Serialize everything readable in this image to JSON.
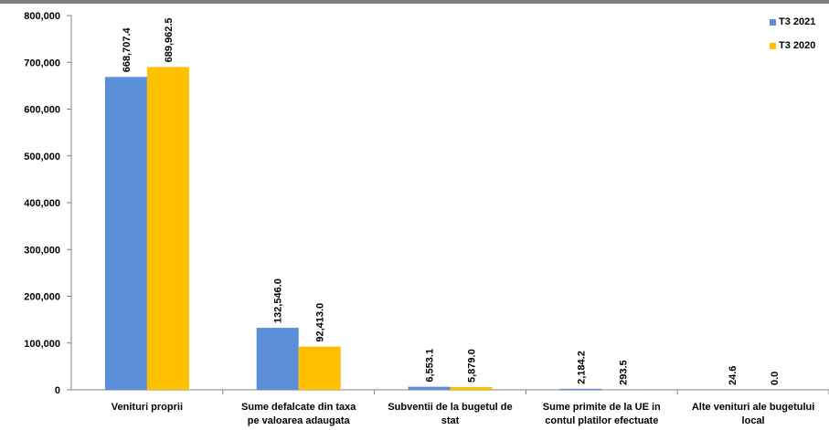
{
  "chart_data": {
    "type": "bar",
    "categories": [
      [
        "Venituri proprii"
      ],
      [
        "Sume defalcate din taxa",
        "pe valoarea adaugata"
      ],
      [
        "Subventii de la bugetul de",
        "stat"
      ],
      [
        "Sume primite de la UE in",
        "contul platilor efectuate"
      ],
      [
        "Alte venituri ale bugetului",
        "local"
      ]
    ],
    "series": [
      {
        "name": "T3 2021",
        "color": "#5B8ED6",
        "values": [
          668707.4,
          132546.0,
          6553.1,
          2184.2,
          24.6
        ],
        "labels": [
          "668,707.4",
          "132,546.0",
          "6,553.1",
          "2,184.2",
          "24.6"
        ]
      },
      {
        "name": "T3 2020",
        "color": "#FFC000",
        "values": [
          689962.5,
          92413.0,
          5879.0,
          293.5,
          0.0
        ],
        "labels": [
          "689,962.5",
          "92,413.0",
          "5,879.0",
          "293.5",
          "0.0"
        ]
      }
    ],
    "ylim": [
      0,
      800000
    ],
    "yticks": [
      "0",
      "100,000",
      "200,000",
      "300,000",
      "400,000",
      "500,000",
      "600,000",
      "700,000",
      "800,000"
    ],
    "grid": false,
    "legend": "top-right"
  }
}
